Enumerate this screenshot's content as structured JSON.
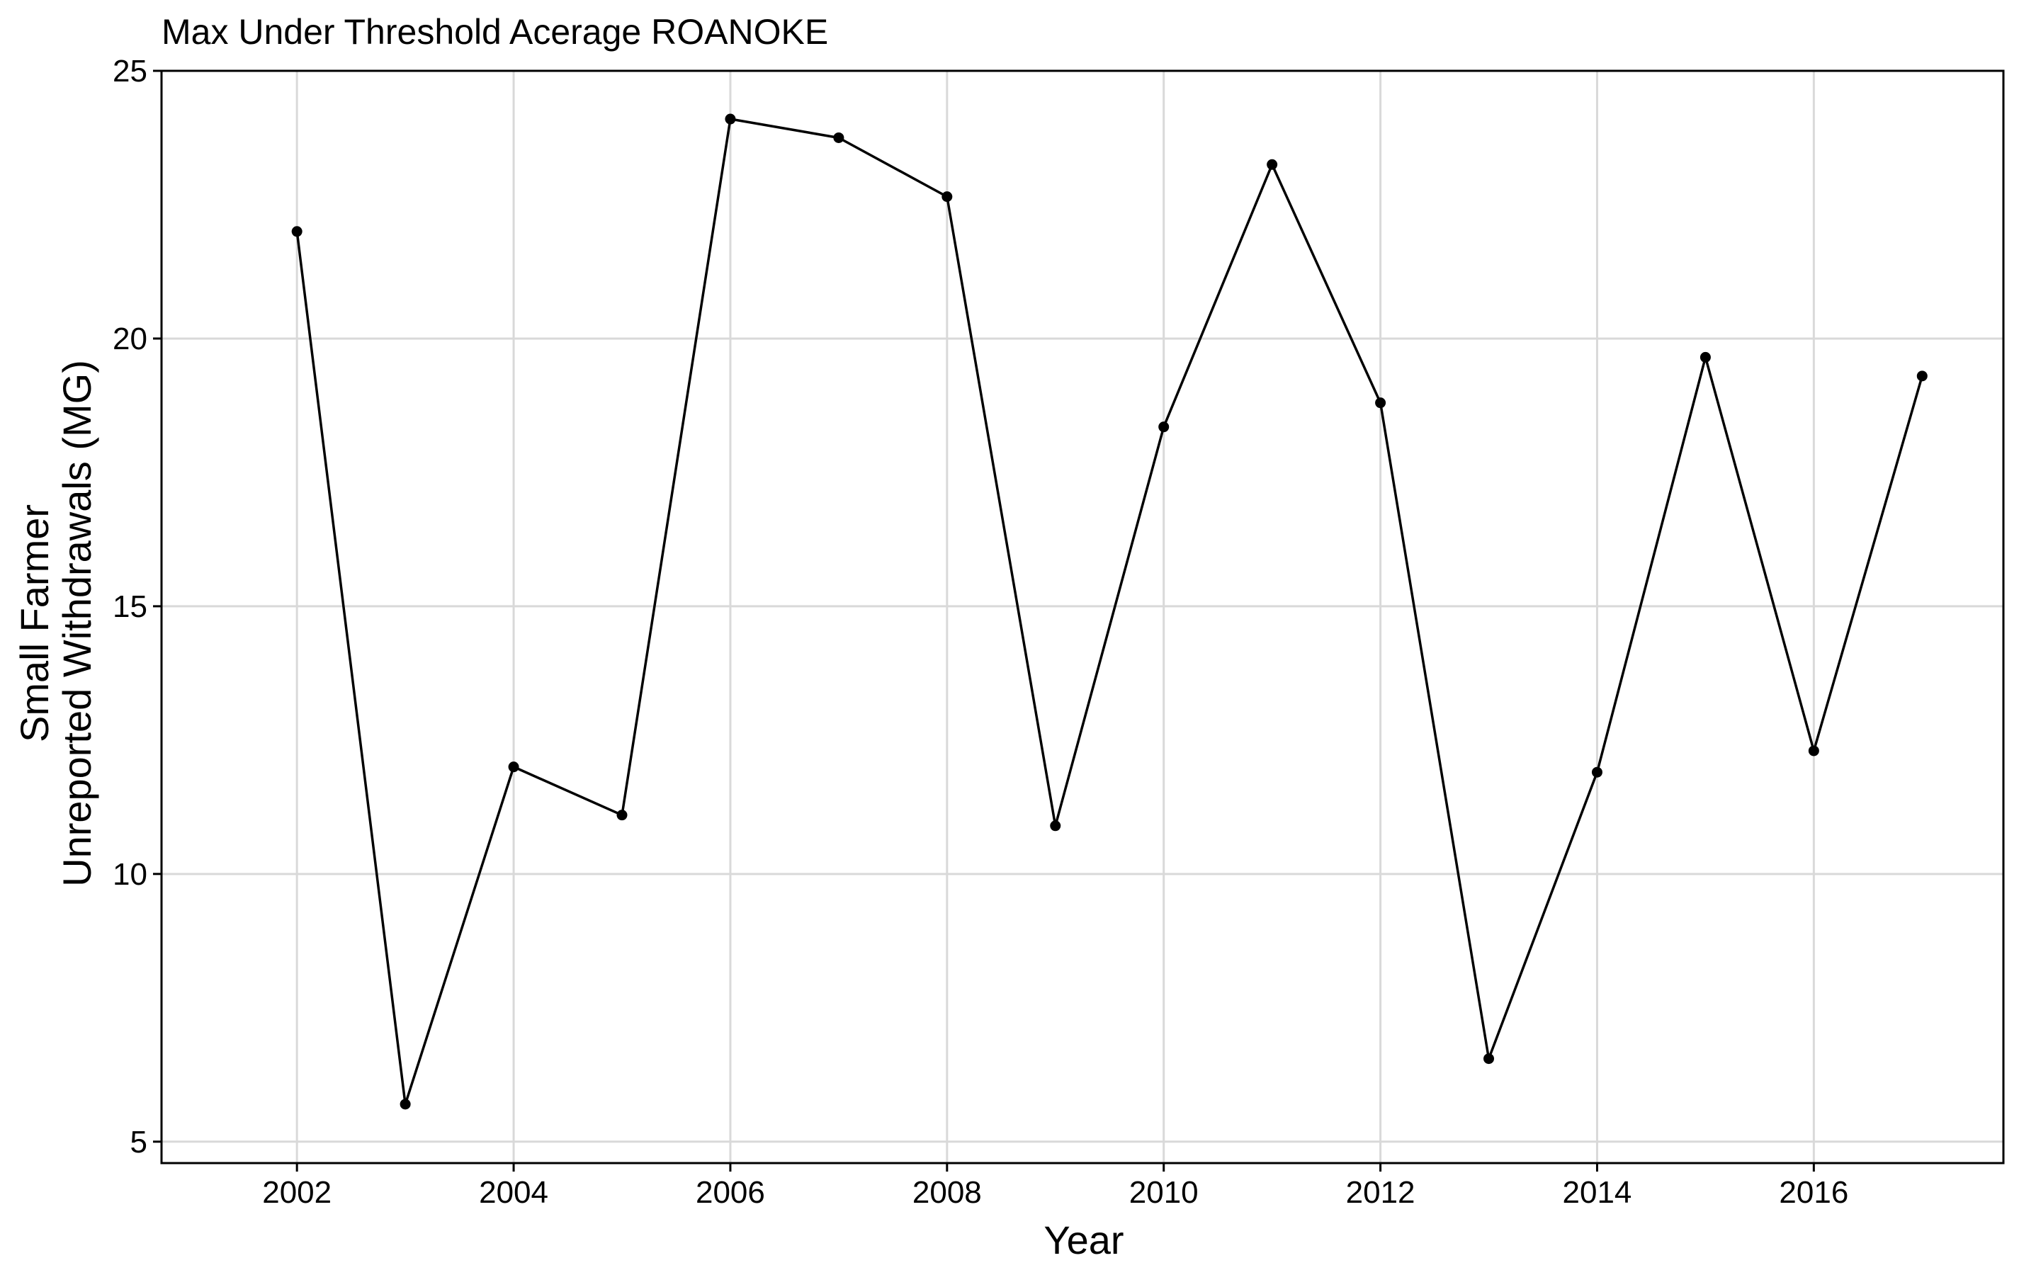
{
  "chart_data": {
    "type": "line",
    "title": "Max Under Threshold Acerage ROANOKE",
    "xlabel": "Year",
    "ylabel_lines": [
      "Small Farmer",
      "Unreported Withdrawals (MG)"
    ],
    "x": [
      2002,
      2003,
      2004,
      2005,
      2006,
      2007,
      2008,
      2009,
      2010,
      2011,
      2012,
      2013,
      2014,
      2015,
      2016,
      2017
    ],
    "series": [
      {
        "values": [
          22.0,
          5.7,
          12.0,
          11.1,
          24.1,
          23.75,
          22.65,
          10.9,
          18.35,
          23.25,
          18.8,
          6.55,
          11.9,
          19.65,
          12.3,
          19.3
        ]
      }
    ],
    "xlim": [
      2000.75,
      2017.75
    ],
    "ylim": [
      4.6,
      25.0
    ],
    "x_ticks": [
      2002,
      2004,
      2006,
      2008,
      2010,
      2012,
      2014,
      2016
    ],
    "x_tick_labels": [
      "2002",
      "2004",
      "2006",
      "2008",
      "2010",
      "2012",
      "2014",
      "2016"
    ],
    "y_ticks": [
      5,
      10,
      15,
      20,
      25
    ],
    "y_tick_labels": [
      "5",
      "10",
      "15",
      "20",
      "25"
    ],
    "grid": true,
    "colors": {
      "line": "#000000",
      "point": "#000000",
      "grid": "#d9d9d9",
      "border": "#000000",
      "background": "#ffffff"
    }
  }
}
